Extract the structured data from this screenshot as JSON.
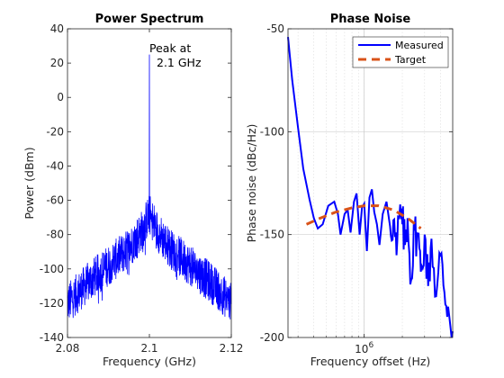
{
  "chart_data": [
    {
      "type": "line",
      "title": "Power Spectrum",
      "xlabel": "Frequency (GHz)",
      "ylabel": "Power (dBm)",
      "xlim": [
        2.08,
        2.12
      ],
      "ylim": [
        -140,
        40
      ],
      "xticks": [
        2.08,
        2.1,
        2.12
      ],
      "xtick_labels": [
        "2.08",
        "2.1",
        "2.12"
      ],
      "yticks": [
        -140,
        -120,
        -100,
        -80,
        -60,
        -40,
        -20,
        0,
        20,
        40
      ],
      "ytick_labels": [
        "-140",
        "-120",
        "-100",
        "-80",
        "-60",
        "-40",
        "-20",
        "0",
        "20",
        "40"
      ],
      "grid": false,
      "annotation": {
        "lines": [
          "Peak at",
          "2.1 GHz"
        ],
        "x": 2.1,
        "y": 20
      },
      "series": [
        {
          "color": "#0000ff",
          "peak": {
            "x": 2.1,
            "y": 25
          },
          "envelope": {
            "x": [
              2.08,
              2.085,
              2.09,
              2.095,
              2.098,
              2.1,
              2.102,
              2.105,
              2.11,
              2.115,
              2.12
            ],
            "y": [
              -112,
              -100,
              -90,
              -80,
              -70,
              -60,
              -70,
              -80,
              -90,
              -100,
              -112
            ]
          },
          "noise_range_db": [
            -20,
            4
          ]
        }
      ]
    },
    {
      "type": "line",
      "title": "Phase Noise",
      "xlabel": "Frequency offset (Hz)",
      "ylabel": "Phase noise (dBc/Hz)",
      "xscale": "log",
      "xlim": [
        250000,
        5000000
      ],
      "ylim": [
        -200,
        -50
      ],
      "xticks": [
        1000000
      ],
      "xtick_labels": [
        "10^6"
      ],
      "yticks": [
        -200,
        -150,
        -100,
        -50
      ],
      "ytick_labels": [
        "-200",
        "-150",
        "-100",
        "-50"
      ],
      "grid": true,
      "legend": "top-right",
      "series": [
        {
          "name": "Measured",
          "color": "#0000ff",
          "style": "solid",
          "x": [
            250000,
            270000,
            300000,
            330000,
            370000,
            400000,
            430000,
            470000,
            520000,
            580000,
            620000,
            650000,
            700000,
            740000,
            780000,
            830000,
            870000,
            920000,
            960000,
            1000000,
            1050000,
            1100000,
            1150000,
            1200000,
            1260000,
            1320000,
            1400000,
            1500000,
            1600000,
            1700000,
            1800000,
            1900000,
            2000000,
            2100000,
            2200000,
            2350000,
            2500000,
            2650000,
            2800000,
            3000000,
            3200000,
            3400000,
            3700000,
            4000000,
            4300000,
            4600000,
            5000000
          ],
          "y": [
            -54,
            -75,
            -98,
            -118,
            -133,
            -142,
            -147,
            -145,
            -136,
            -134,
            -140,
            -150,
            -140,
            -138,
            -149,
            -134,
            -130,
            -150,
            -137,
            -135,
            -158,
            -132,
            -128,
            -139,
            -145,
            -155,
            -140,
            -134,
            -146,
            -143,
            -160,
            -140,
            -145,
            -155,
            -142,
            -172,
            -148,
            -150,
            -168,
            -150,
            -175,
            -152,
            -180,
            -160,
            -178,
            -185,
            -197
          ]
        },
        {
          "name": "Target",
          "color": "#d95319",
          "style": "dashed",
          "x": [
            350000,
            450000,
            600000,
            800000,
            1000000,
            1300000,
            1700000,
            2200000,
            2800000
          ],
          "y": [
            -145,
            -142,
            -139,
            -137,
            -136,
            -136,
            -138,
            -142,
            -147
          ]
        }
      ]
    }
  ]
}
